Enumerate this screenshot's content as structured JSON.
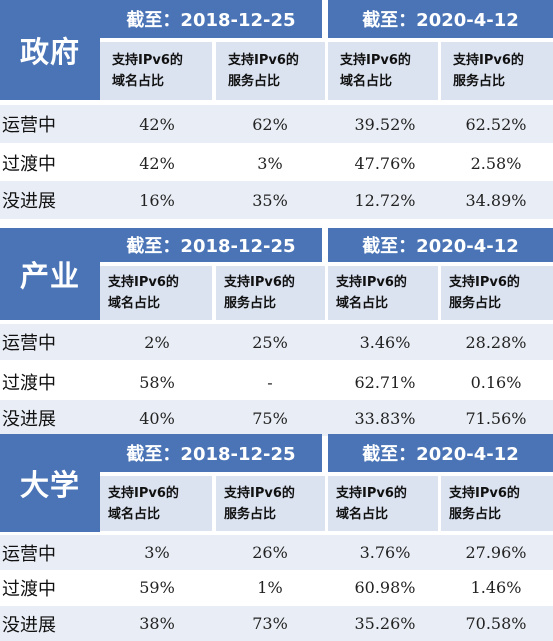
{
  "colors": {
    "header_blue": "#4a74b6",
    "subheader_bg": "#dbe3f1",
    "alt_row_bg": "#e9edf5"
  },
  "sections": [
    {
      "category": "政府",
      "dates": [
        "截至：2018-12-25",
        "截至：2020-4-12"
      ],
      "subheaders": [
        "支持IPv6的\n域名占比",
        "支持IPv6的\n服务占比",
        "支持IPv6的\n域名占比",
        "支持IPv6的\n服务占比"
      ],
      "rows": [
        {
          "label": "运营中",
          "values": [
            "42%",
            "62%",
            "39.52%",
            "62.52%"
          ]
        },
        {
          "label": "过渡中",
          "values": [
            "42%",
            "3%",
            "47.76%",
            "2.58%"
          ]
        },
        {
          "label": "没进展",
          "values": [
            "16%",
            "35%",
            "12.72%",
            "34.89%"
          ]
        }
      ]
    },
    {
      "category": "产业",
      "dates": [
        "截至：2018-12-25",
        "截至：2020-4-12"
      ],
      "subheaders": [
        "支持IPv6的\n域名占比",
        "支持IPv6的\n服务占比",
        "支持IPv6的\n域名占比",
        "支持IPv6的\n服务占比"
      ],
      "rows": [
        {
          "label": "运营中",
          "values": [
            "2%",
            "25%",
            "3.46%",
            "28.28%"
          ]
        },
        {
          "label": "过渡中",
          "values": [
            "58%",
            "-",
            "62.71%",
            "0.16%"
          ]
        },
        {
          "label": "没进展",
          "values": [
            "40%",
            "75%",
            "33.83%",
            "71.56%"
          ]
        }
      ]
    },
    {
      "category": "大学",
      "dates": [
        "截至：2018-12-25",
        "截至：2020-4-12"
      ],
      "subheaders": [
        "支持IPv6的\n域名占比",
        "支持IPv6的\n服务占比",
        "支持IPv6的\n域名占比",
        "支持IPv6的\n服务占比"
      ],
      "rows": [
        {
          "label": "运营中",
          "values": [
            "3%",
            "26%",
            "3.76%",
            "27.96%"
          ]
        },
        {
          "label": "过渡中",
          "values": [
            "59%",
            "1%",
            "60.98%",
            "1.46%"
          ]
        },
        {
          "label": "没进展",
          "values": [
            "38%",
            "73%",
            "35.26%",
            "70.58%"
          ]
        }
      ]
    }
  ]
}
